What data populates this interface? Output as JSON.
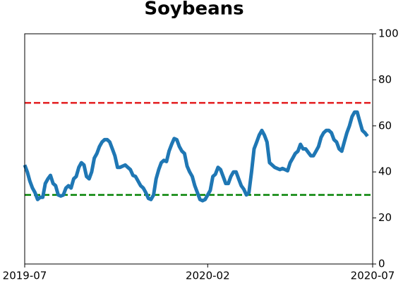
{
  "chart_data": {
    "type": "line",
    "title": "Soybeans",
    "series": [
      {
        "name": "Soybeans",
        "color": "#1f77b4",
        "values": [
          43,
          40,
          36,
          33,
          31,
          28,
          29,
          29,
          35,
          37,
          38.5,
          35,
          34,
          30,
          29.5,
          30,
          33,
          34,
          33,
          37,
          38,
          42,
          44,
          43,
          38,
          37,
          40,
          46,
          48,
          51,
          53,
          54,
          54,
          53,
          50,
          47,
          42,
          42,
          42.5,
          43,
          42,
          41,
          38.5,
          38,
          36,
          34,
          33,
          31,
          28.5,
          28,
          30,
          37,
          41,
          44,
          45,
          44.5,
          49,
          52,
          54.5,
          54,
          51,
          49,
          48,
          42.5,
          40,
          38,
          34,
          31,
          28,
          27.5,
          28,
          30,
          32,
          38,
          39,
          42,
          41,
          38,
          35,
          35,
          38,
          40,
          40,
          37,
          34,
          32.5,
          30,
          31,
          40,
          50,
          53,
          56,
          58,
          56,
          53,
          44,
          43,
          42,
          41.5,
          41,
          41.5,
          41,
          40.5,
          44,
          46,
          48,
          49,
          52,
          50,
          50,
          48.5,
          47,
          47,
          49,
          51,
          55,
          57,
          58,
          58,
          57,
          54,
          53,
          50,
          49,
          53,
          57,
          60,
          64,
          66,
          66,
          62,
          58,
          57,
          55.5
        ]
      }
    ],
    "xlim": [
      0,
      135
    ],
    "xticks": [
      {
        "value": 0,
        "label": "2019-07"
      },
      {
        "value": 71,
        "label": "2020-02"
      },
      {
        "value": 135,
        "label": "2020-07"
      }
    ],
    "ylim": [
      0,
      100
    ],
    "yticks": [
      0,
      20,
      40,
      60,
      80,
      100
    ],
    "y_axis_side": "right",
    "hlines": [
      {
        "value": 70,
        "color": "#e31a1c"
      },
      {
        "value": 30,
        "color": "#008000"
      }
    ]
  }
}
